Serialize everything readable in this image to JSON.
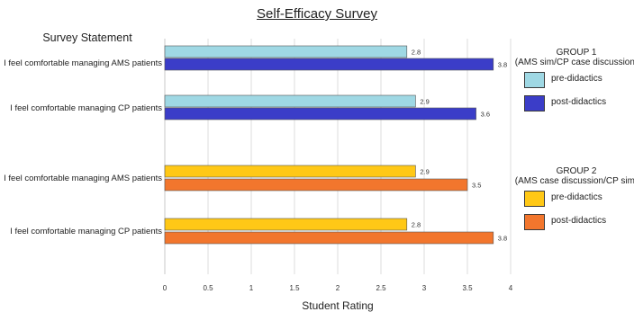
{
  "chart_data": {
    "type": "bar",
    "orientation": "horizontal",
    "title": "Self-Efficacy Survey",
    "category_header": "Survey Statement",
    "xlabel": "Student Rating",
    "xlim": [
      0,
      4
    ],
    "xticks": [
      "0",
      "0.5",
      "1",
      "1.5",
      "2",
      "2.5",
      "3",
      "3.5",
      "4"
    ],
    "grid": "vertical",
    "categories": [
      "I feel comfortable managing AMS patients",
      "I feel comfortable managing CP patients",
      "I feel comfortable managing AMS patients",
      "I feel comfortable managing CP patients"
    ],
    "bars": [
      {
        "category": 0,
        "group": 1,
        "series": "pre-didactics",
        "value": 2.8,
        "label": "2.8",
        "color": "#9fd8e4"
      },
      {
        "category": 0,
        "group": 1,
        "series": "post-didactics",
        "value": 3.8,
        "label": "3.8",
        "color": "#3b3dc8"
      },
      {
        "category": 1,
        "group": 1,
        "series": "pre-didactics",
        "value": 2.9,
        "label": "2.9",
        "color": "#9fd8e4"
      },
      {
        "category": 1,
        "group": 1,
        "series": "post-didactics",
        "value": 3.6,
        "label": "3.6",
        "color": "#3b3dc8"
      },
      {
        "category": 2,
        "group": 2,
        "series": "pre-didactics",
        "value": 2.9,
        "label": "2.9",
        "color": "#ffc816"
      },
      {
        "category": 2,
        "group": 2,
        "series": "post-didactics",
        "value": 3.5,
        "label": "3.5",
        "color": "#f2762d"
      },
      {
        "category": 3,
        "group": 2,
        "series": "pre-didactics",
        "value": 2.8,
        "label": "2.8",
        "color": "#ffc816"
      },
      {
        "category": 3,
        "group": 2,
        "series": "post-didactics",
        "value": 3.8,
        "label": "3.8",
        "color": "#f2762d"
      }
    ],
    "legend": {
      "placement": "right",
      "groups": [
        {
          "title": "GROUP 1",
          "subtitle": "(AMS sim/CP case discussion)",
          "items": [
            {
              "label": "pre-didactics",
              "color": "#9fd8e4"
            },
            {
              "label": "post-didactics",
              "color": "#3b3dc8"
            }
          ]
        },
        {
          "title": "GROUP 2",
          "subtitle": "(AMS case discussion/CP sim)",
          "items": [
            {
              "label": "pre-didactics",
              "color": "#ffc816"
            },
            {
              "label": "post-didactics",
              "color": "#f2762d"
            }
          ]
        }
      ]
    }
  }
}
